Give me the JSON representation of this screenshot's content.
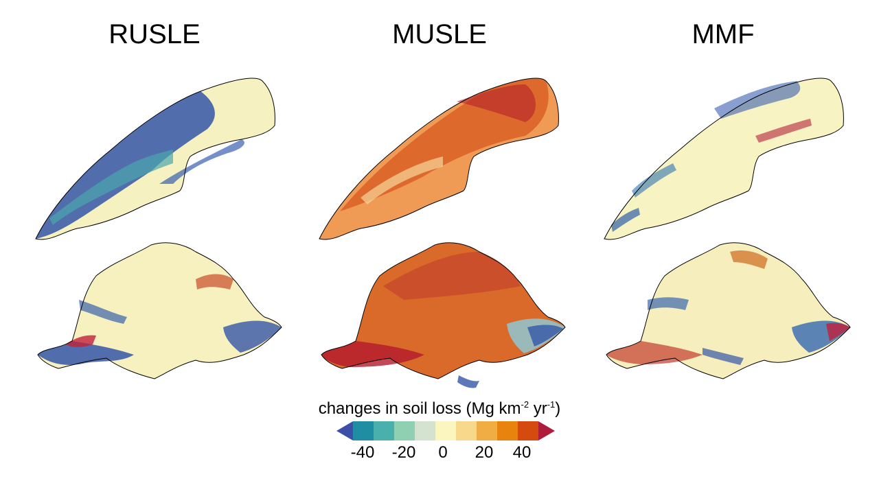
{
  "panels": [
    {
      "title": "RUSLE"
    },
    {
      "title": "MUSLE"
    },
    {
      "title": "MMF"
    }
  ],
  "legend": {
    "title_prefix": "changes in soil loss (Mg km",
    "sup1": "-2",
    "middle": " yr",
    "sup2": "-1",
    "suffix": ")",
    "ticks": [
      "-40",
      "-20",
      "0",
      "20",
      "40"
    ],
    "colors": [
      "#3b4fa8",
      "#1f8ea3",
      "#4ab0ad",
      "#8fcfb2",
      "#d4e3cf",
      "#fbf6bf",
      "#f8d88a",
      "#efad44",
      "#e8830d",
      "#d54a0e",
      "#b01c3c"
    ]
  }
}
